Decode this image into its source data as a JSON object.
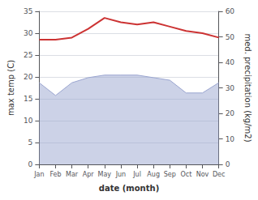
{
  "chart_data": {
    "type": "line",
    "xlabel": "date (month)",
    "ylabel": "max temp (C)",
    "y2label": "med. precipitation (kg/m2)",
    "categories": [
      "Jan",
      "Feb",
      "Mar",
      "Apr",
      "May",
      "Jun",
      "Jul",
      "Aug",
      "Sep",
      "Oct",
      "Nov",
      "Dec"
    ],
    "series": [
      {
        "type": "area",
        "axis": "y2",
        "color": "#9aa5d0",
        "values": [
          32,
          27,
          32,
          34,
          35,
          35,
          35,
          34,
          33,
          28,
          28,
          32
        ]
      },
      {
        "type": "line",
        "color": "#cc3333",
        "values": [
          28.5,
          28.5,
          29.0,
          31.0,
          33.5,
          32.5,
          32.0,
          32.5,
          31.5,
          30.5,
          30.0,
          29.0
        ]
      }
    ],
    "ylim": [
      0,
      35
    ],
    "yticks": [
      0,
      5,
      10,
      15,
      20,
      25,
      30,
      35
    ],
    "y2lim": [
      0,
      60
    ],
    "y2ticks": [
      0,
      10,
      20,
      30,
      40,
      50,
      60
    ],
    "grid": true
  }
}
